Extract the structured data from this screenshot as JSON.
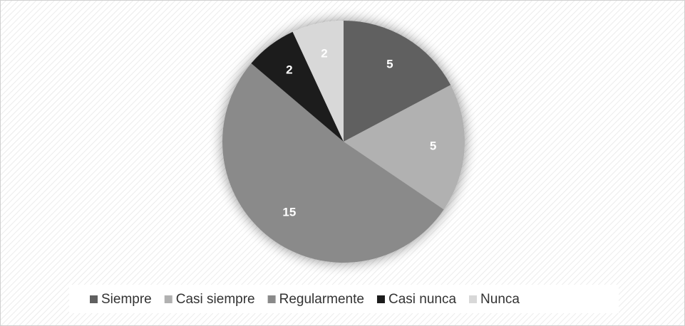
{
  "chart_data": {
    "type": "pie",
    "categories": [
      "Siempre",
      "Casi siempre",
      "Regularmente",
      "Casi nunca",
      "Nunca"
    ],
    "values": [
      5,
      5,
      15,
      2,
      2
    ],
    "colors": [
      "#606060",
      "#b1b1b1",
      "#8a8a8a",
      "#1c1c1c",
      "#d8d8d8"
    ],
    "legend": "bottom"
  }
}
